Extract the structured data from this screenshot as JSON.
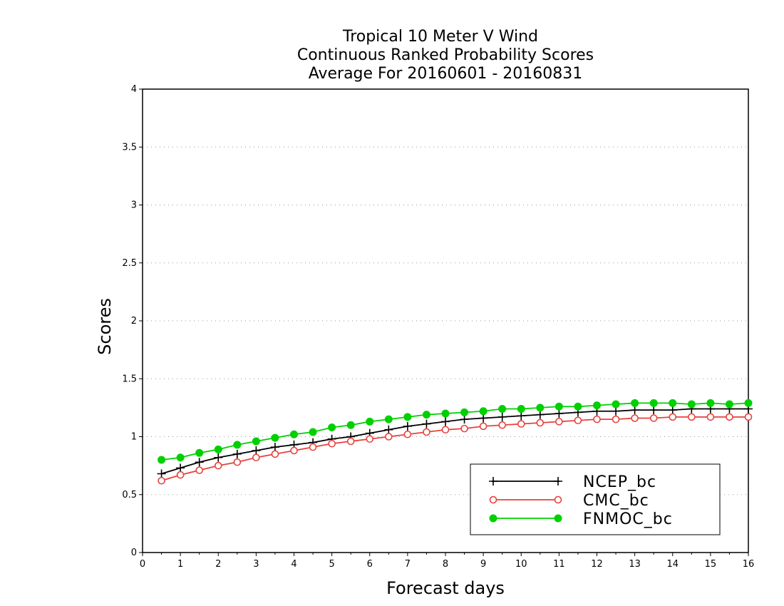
{
  "chart_data": {
    "type": "line",
    "title": [
      "Tropical 10 Meter V Wind",
      "Continuous Ranked Probability Scores",
      "Average For 20160601 - 20160831"
    ],
    "xlabel": "Forecast days",
    "ylabel": "Scores",
    "xlim": [
      0,
      16
    ],
    "ylim": [
      0,
      4
    ],
    "xticks": [
      "0",
      "1",
      "2",
      "3",
      "4",
      "5",
      "6",
      "7",
      "8",
      "9",
      "10",
      "11",
      "12",
      "13",
      "14",
      "15",
      "16"
    ],
    "yticks": [
      "0",
      "0.5",
      "1",
      "1.5",
      "2",
      "2.5",
      "3",
      "3.5",
      "4"
    ],
    "grid": true,
    "legend_position": "bottom-right",
    "x": [
      0.5,
      1,
      1.5,
      2,
      2.5,
      3,
      3.5,
      4,
      4.5,
      5,
      5.5,
      6,
      6.5,
      7,
      7.5,
      8,
      8.5,
      9,
      9.5,
      10,
      10.5,
      11,
      11.5,
      12,
      12.5,
      13,
      13.5,
      14,
      14.5,
      15,
      15.5,
      16
    ],
    "series": [
      {
        "name": "NCEP_bc",
        "color": "#000000",
        "marker": "plus",
        "values": [
          0.68,
          0.73,
          0.78,
          0.82,
          0.85,
          0.88,
          0.91,
          0.93,
          0.95,
          0.98,
          1.0,
          1.03,
          1.06,
          1.09,
          1.11,
          1.13,
          1.15,
          1.16,
          1.17,
          1.18,
          1.19,
          1.2,
          1.21,
          1.22,
          1.22,
          1.23,
          1.23,
          1.23,
          1.24,
          1.24,
          1.24,
          1.24
        ]
      },
      {
        "name": "CMC_bc",
        "color": "#e8413c",
        "marker": "open-circle",
        "values": [
          0.62,
          0.67,
          0.71,
          0.75,
          0.78,
          0.82,
          0.85,
          0.88,
          0.91,
          0.94,
          0.96,
          0.98,
          1.0,
          1.02,
          1.04,
          1.06,
          1.07,
          1.09,
          1.1,
          1.11,
          1.12,
          1.13,
          1.14,
          1.15,
          1.15,
          1.16,
          1.16,
          1.17,
          1.17,
          1.17,
          1.17,
          1.17
        ]
      },
      {
        "name": "FNMOC_bc",
        "color": "#00d000",
        "marker": "filled-circle",
        "values": [
          0.8,
          0.82,
          0.86,
          0.89,
          0.93,
          0.96,
          0.99,
          1.02,
          1.04,
          1.08,
          1.1,
          1.13,
          1.15,
          1.17,
          1.19,
          1.2,
          1.21,
          1.22,
          1.24,
          1.24,
          1.25,
          1.26,
          1.26,
          1.27,
          1.28,
          1.29,
          1.29,
          1.29,
          1.28,
          1.29,
          1.28,
          1.29
        ]
      }
    ]
  }
}
